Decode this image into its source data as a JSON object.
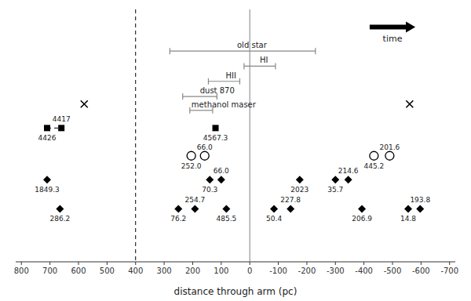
{
  "chart_data": {
    "type": "scatter",
    "x_label": "distance through arm (pc)",
    "xlim": [
      820,
      -720
    ],
    "ylim": [
      0,
      10
    ],
    "xticks": [
      800,
      700,
      600,
      500,
      400,
      300,
      200,
      100,
      0,
      -100,
      -200,
      -300,
      -400,
      -500,
      -600,
      -700
    ],
    "tick_labels": "x",
    "reference_lines": [
      {
        "x": 400,
        "line_style": "dashed",
        "color": "#000000"
      },
      {
        "x": 0,
        "line_style": "solid",
        "color": "#808080"
      }
    ],
    "arrow": {
      "x_start": -420,
      "x_end": -580,
      "y": 9.3,
      "label": "time",
      "color": "#000000"
    },
    "error_bars": {
      "color": "#888888",
      "labels": [
        "old star",
        "HI",
        "HII",
        "dust 870",
        "methanol maser"
      ],
      "center": [
        50,
        -30,
        90,
        180,
        210
      ],
      "err_minus": [
        280,
        60,
        55,
        65,
        80
      ],
      "err_plus": [
        230,
        50,
        55,
        55,
        0
      ],
      "y": [
        8.35,
        7.75,
        7.15,
        6.55,
        6.0
      ]
    },
    "series": [
      {
        "marker": "square",
        "color": "#000000",
        "x": [
          710,
          660,
          120
        ],
        "y": [
          5.3,
          5.3,
          5.3
        ],
        "labels": [
          "4426",
          "4417",
          "4567.3"
        ]
      },
      {
        "marker": "cross",
        "color": "#000000",
        "x": [
          580,
          -560
        ],
        "y": [
          6.25,
          6.25
        ]
      },
      {
        "marker": "circle",
        "color": "#000000",
        "x": [
          205,
          158,
          -435,
          -490
        ],
        "y": [
          4.2,
          4.2,
          4.2,
          4.2
        ],
        "labels": [
          "252.0",
          "66.0",
          "445.2",
          "201.6"
        ]
      },
      {
        "marker": "diamond",
        "color": "#000000",
        "x": [
          710,
          140,
          100,
          -175,
          -300,
          -345
        ],
        "y": [
          3.25,
          3.25,
          3.25,
          3.25,
          3.25,
          3.25
        ],
        "labels": [
          "1849.3",
          "70.3",
          "66.0",
          "2023",
          "35.7",
          "214.6"
        ]
      },
      {
        "marker": "diamond",
        "color": "#000000",
        "x": [
          665,
          250,
          192,
          82,
          -85,
          -143,
          -393,
          -555,
          -597
        ],
        "y": [
          2.1,
          2.1,
          2.1,
          2.1,
          2.1,
          2.1,
          2.1,
          2.1,
          2.1
        ],
        "labels": [
          "286.2",
          "76.2",
          "254.7",
          "485.5",
          "50.4",
          "227.8",
          "206.9",
          "14.8",
          "193.8"
        ]
      }
    ],
    "connectors": [
      {
        "x1": 710,
        "x2": 660,
        "y": 5.3,
        "line_style": "dashed",
        "color": "#000000"
      }
    ]
  }
}
